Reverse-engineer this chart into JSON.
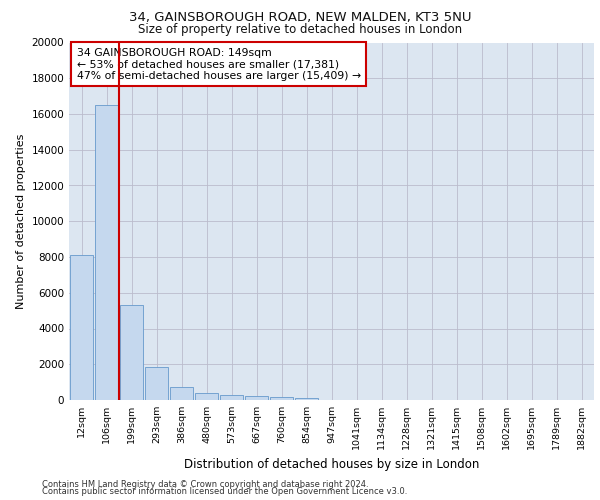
{
  "title1": "34, GAINSBOROUGH ROAD, NEW MALDEN, KT3 5NU",
  "title2": "Size of property relative to detached houses in London",
  "xlabel": "Distribution of detached houses by size in London",
  "ylabel": "Number of detached properties",
  "categories": [
    "12sqm",
    "106sqm",
    "199sqm",
    "293sqm",
    "386sqm",
    "480sqm",
    "573sqm",
    "667sqm",
    "760sqm",
    "854sqm",
    "947sqm",
    "1041sqm",
    "1134sqm",
    "1228sqm",
    "1321sqm",
    "1415sqm",
    "1508sqm",
    "1602sqm",
    "1695sqm",
    "1789sqm",
    "1882sqm"
  ],
  "values": [
    8100,
    16500,
    5300,
    1850,
    750,
    380,
    280,
    220,
    190,
    130,
    0,
    0,
    0,
    0,
    0,
    0,
    0,
    0,
    0,
    0,
    0
  ],
  "bar_color": "#c5d8ee",
  "bar_edge_color": "#6699cc",
  "vline_x": 1.5,
  "vline_color": "#cc0000",
  "annotation_text": "34 GAINSBOROUGH ROAD: 149sqm\n← 53% of detached houses are smaller (17,381)\n47% of semi-detached houses are larger (15,409) →",
  "annotation_box_color": "#cc0000",
  "annotation_box_facecolor": "white",
  "ylim": [
    0,
    20000
  ],
  "yticks": [
    0,
    2000,
    4000,
    6000,
    8000,
    10000,
    12000,
    14000,
    16000,
    18000,
    20000
  ],
  "footer1": "Contains HM Land Registry data © Crown copyright and database right 2024.",
  "footer2": "Contains public sector information licensed under the Open Government Licence v3.0.",
  "background_color": "#dce6f1",
  "plot_background": "#ffffff",
  "grid_color": "#bbbbcc"
}
